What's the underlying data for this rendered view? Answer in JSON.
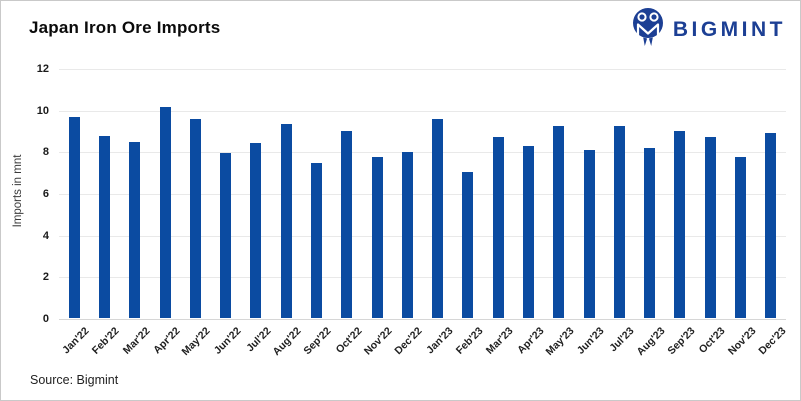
{
  "header": {
    "title": "Japan Iron Ore Imports",
    "logo_text": "BIGMINT"
  },
  "footer": {
    "source": "Source: Bigmint"
  },
  "colors": {
    "bar": "#0b4ba1",
    "logo_navy": "#1c3f94",
    "gridline": "#e9e9e9",
    "baseline": "#d6d6d6"
  },
  "chart_data": {
    "type": "bar",
    "title": "Japan Iron Ore Imports",
    "ylabel": "Imports in mnt",
    "xlabel": "",
    "ylim": [
      0,
      12
    ],
    "ytick_step": 2,
    "grid": true,
    "legend_position": "none",
    "categories": [
      "Jan'22",
      "Feb'22",
      "Mar'22",
      "Apr'22",
      "May'22",
      "Jun'22",
      "Jul'22",
      "Aug'22",
      "Sep'22",
      "Oct'22",
      "Nov'22",
      "Dec'22",
      "Jan'23",
      "Feb'23",
      "Mar'23",
      "Apr'23",
      "May'23",
      "Jun'23",
      "Jul'23",
      "Aug'23",
      "Sep'23",
      "Oct'23",
      "Nov'23",
      "Dec'23"
    ],
    "values": [
      9.65,
      8.75,
      8.45,
      10.15,
      9.55,
      7.9,
      8.4,
      9.3,
      7.45,
      9.0,
      7.75,
      7.95,
      9.55,
      7.0,
      8.7,
      8.25,
      9.2,
      8.05,
      9.2,
      8.15,
      9.0,
      8.7,
      7.75,
      8.9
    ]
  }
}
